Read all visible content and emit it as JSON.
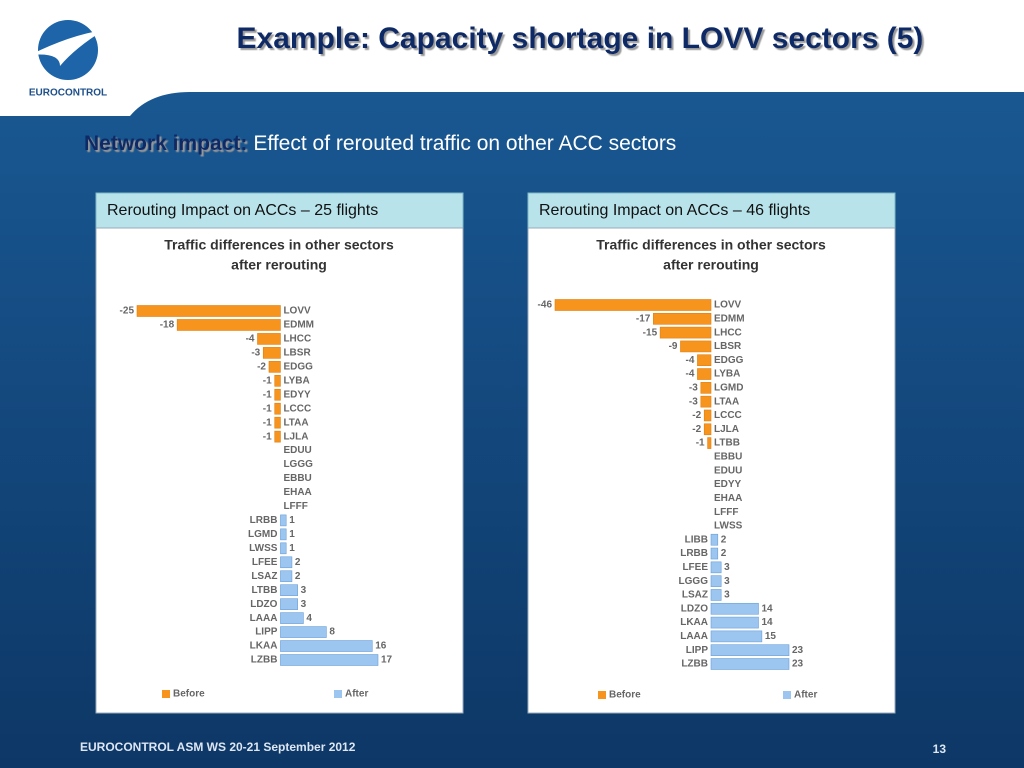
{
  "slide": {
    "title": "Example: Capacity shortage in LOVV sectors (5)",
    "logo": "EUROCONTROL",
    "subtitle_bold": "Network impact:",
    "subtitle": "Effect of rerouted traffic on other ACC sectors",
    "footer": "EUROCONTROL ASM WS 20-21 September 2012",
    "page": "13"
  },
  "chart_data": [
    {
      "type": "bar",
      "orientation": "horizontal",
      "heading": "Rerouting Impact on ACCs – 25 flights",
      "title": [
        "Traffic differences in other sectors",
        "after rerouting"
      ],
      "categories": [
        "LOVV",
        "EDMM",
        "LHCC",
        "LBSR",
        "EDGG",
        "LYBA",
        "EDYY",
        "LCCC",
        "LTAA",
        "LJLA",
        "EDUU",
        "LGGG",
        "EBBU",
        "EHAA",
        "LFFF",
        "LRBB",
        "LGMD",
        "LWSS",
        "LFEE",
        "LSAZ",
        "LTBB",
        "LDZO",
        "LAAA",
        "LIPP",
        "LKAA",
        "LZBB"
      ],
      "series": [
        {
          "name": "Before",
          "color": "#f7941d",
          "values": [
            -25,
            -18,
            -4,
            -3,
            -2,
            -1,
            -1,
            -1,
            -1,
            -1,
            null,
            null,
            null,
            null,
            null,
            null,
            null,
            null,
            null,
            null,
            null,
            null,
            null,
            null,
            null,
            null
          ]
        },
        {
          "name": "After",
          "color": "#9cc6f0",
          "values": [
            null,
            null,
            null,
            null,
            null,
            null,
            null,
            null,
            null,
            null,
            null,
            null,
            null,
            null,
            null,
            1,
            1,
            1,
            2,
            2,
            3,
            3,
            4,
            8,
            16,
            17
          ]
        }
      ],
      "legend": "bottom"
    },
    {
      "type": "bar",
      "orientation": "horizontal",
      "heading": "Rerouting Impact on ACCs – 46 flights",
      "title": [
        "Traffic differences in other sectors",
        "after rerouting"
      ],
      "categories": [
        "LOVV",
        "EDMM",
        "LHCC",
        "LBSR",
        "EDGG",
        "LYBA",
        "LGMD",
        "LTAA",
        "LCCC",
        "LJLA",
        "LTBB",
        "EBBU",
        "EDUU",
        "EDYY",
        "EHAA",
        "LFFF",
        "LWSS",
        "LIBB",
        "LRBB",
        "LFEE",
        "LGGG",
        "LSAZ",
        "LDZO",
        "LKAA",
        "LAAA",
        "LIPP",
        "LZBB"
      ],
      "series": [
        {
          "name": "Before",
          "color": "#f7941d",
          "values": [
            -46,
            -17,
            -15,
            -9,
            -4,
            -4,
            -3,
            -3,
            -2,
            -2,
            -1,
            null,
            null,
            null,
            null,
            null,
            null,
            null,
            null,
            null,
            null,
            null,
            null,
            null,
            null,
            null,
            null
          ]
        },
        {
          "name": "After",
          "color": "#9cc6f0",
          "values": [
            null,
            null,
            null,
            null,
            null,
            null,
            null,
            null,
            null,
            null,
            null,
            null,
            null,
            null,
            null,
            null,
            null,
            2,
            2,
            3,
            3,
            3,
            14,
            14,
            15,
            23,
            23
          ]
        }
      ],
      "legend": "bottom"
    }
  ]
}
